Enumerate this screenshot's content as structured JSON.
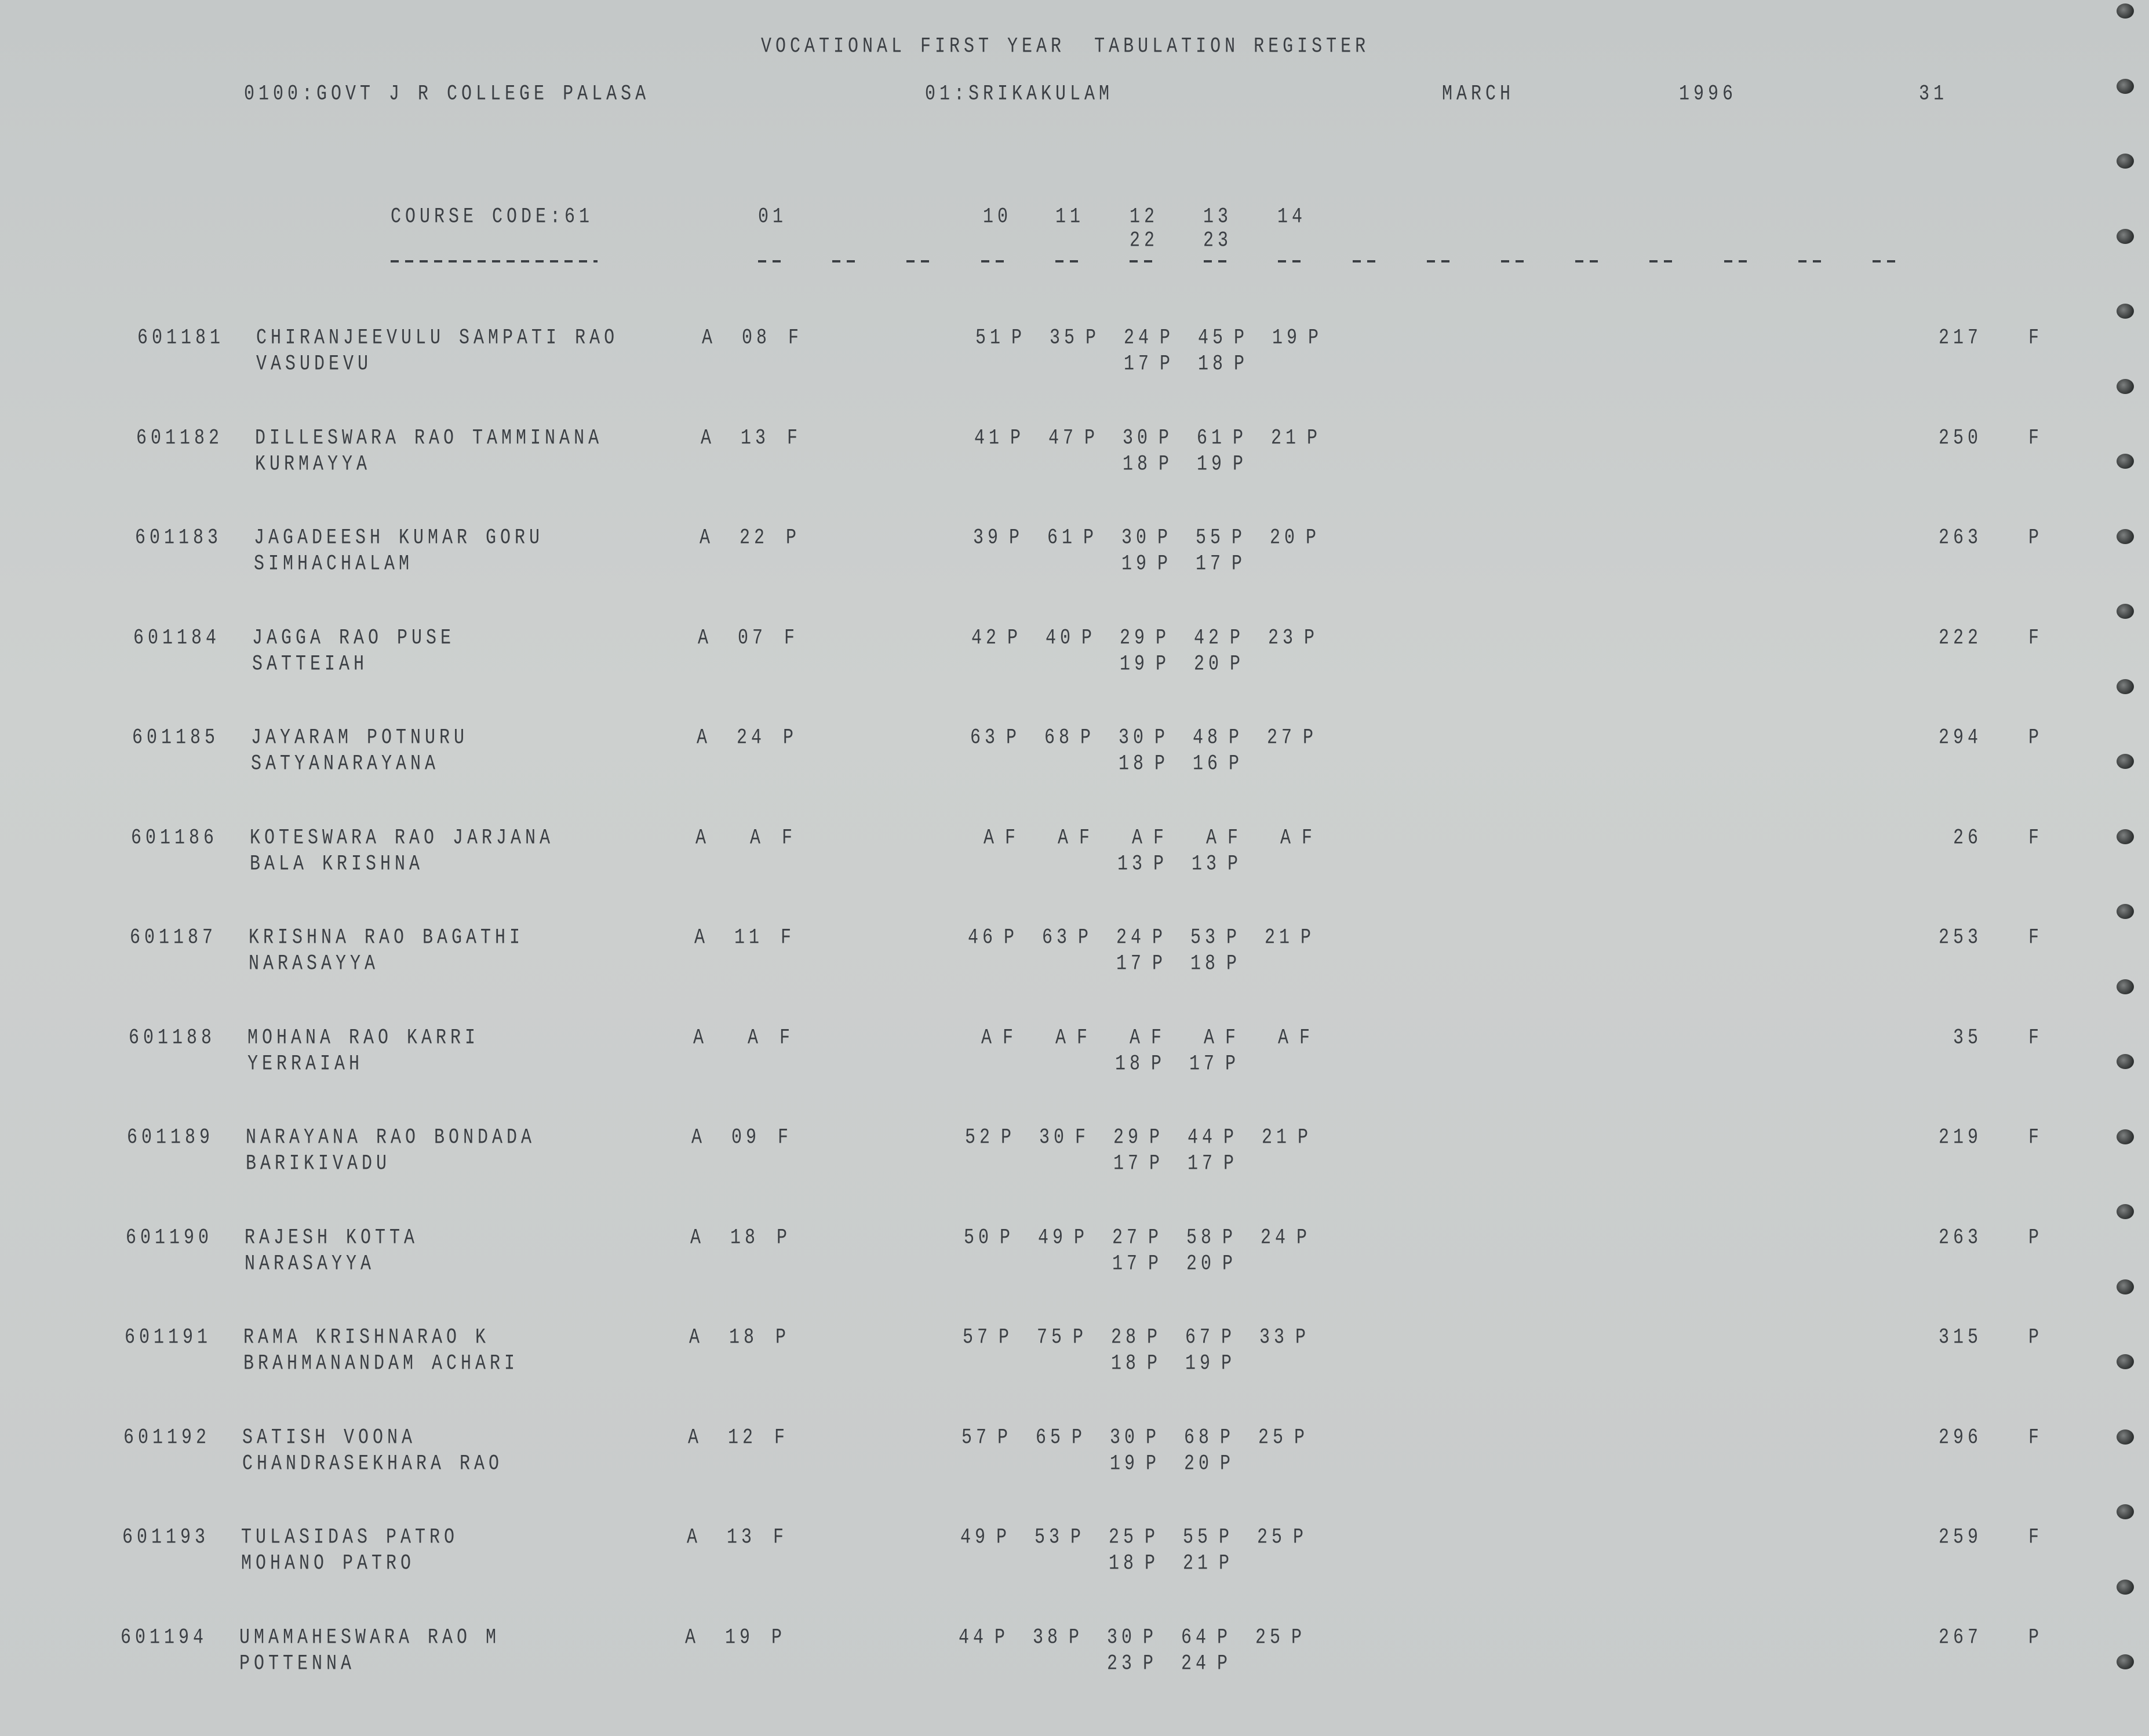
{
  "header": {
    "title": "VOCATIONAL FIRST YEAR  TABULATION REGISTER",
    "college": "0100:GOVT J R COLLEGE PALASA",
    "district": "01:SRIKAKULAM",
    "month": "MARCH",
    "year": "1996",
    "page": "31",
    "course_code": "COURSE CODE:61",
    "subject_codes": [
      "01",
      "10",
      "11",
      "12",
      "13",
      "14"
    ],
    "subject_codes_second": [
      "22",
      "23"
    ]
  },
  "rows": [
    {
      "id": "601181",
      "name1": "CHIRANJEEVULU SAMPATI RAO",
      "name2": "VASUDEVU",
      "s01": [
        "A",
        "08",
        "F"
      ],
      "marks": [
        [
          "51",
          "P"
        ],
        [
          "35",
          "P"
        ],
        [
          "24",
          "P"
        ],
        [
          "45",
          "P"
        ],
        [
          "19",
          "P"
        ]
      ],
      "marks2": [
        [
          "17",
          "P"
        ],
        [
          "18",
          "P"
        ]
      ],
      "total": "217",
      "result": "F"
    },
    {
      "id": "601182",
      "name1": "DILLESWARA RAO TAMMINANA",
      "name2": "KURMAYYA",
      "s01": [
        "A",
        "13",
        "F"
      ],
      "marks": [
        [
          "41",
          "P"
        ],
        [
          "47",
          "P"
        ],
        [
          "30",
          "P"
        ],
        [
          "61",
          "P"
        ],
        [
          "21",
          "P"
        ]
      ],
      "marks2": [
        [
          "18",
          "P"
        ],
        [
          "19",
          "P"
        ]
      ],
      "total": "250",
      "result": "F"
    },
    {
      "id": "601183",
      "name1": "JAGADEESH KUMAR GORU",
      "name2": "SIMHACHALAM",
      "s01": [
        "A",
        "22",
        "P"
      ],
      "marks": [
        [
          "39",
          "P"
        ],
        [
          "61",
          "P"
        ],
        [
          "30",
          "P"
        ],
        [
          "55",
          "P"
        ],
        [
          "20",
          "P"
        ]
      ],
      "marks2": [
        [
          "19",
          "P"
        ],
        [
          "17",
          "P"
        ]
      ],
      "total": "263",
      "result": "P"
    },
    {
      "id": "601184",
      "name1": "JAGGA RAO PUSE",
      "name2": "SATTEIAH",
      "s01": [
        "A",
        "07",
        "F"
      ],
      "marks": [
        [
          "42",
          "P"
        ],
        [
          "40",
          "P"
        ],
        [
          "29",
          "P"
        ],
        [
          "42",
          "P"
        ],
        [
          "23",
          "P"
        ]
      ],
      "marks2": [
        [
          "19",
          "P"
        ],
        [
          "20",
          "P"
        ]
      ],
      "total": "222",
      "result": "F"
    },
    {
      "id": "601185",
      "name1": "JAYARAM POTNURU",
      "name2": "SATYANARAYANA",
      "s01": [
        "A",
        "24",
        "P"
      ],
      "marks": [
        [
          "63",
          "P"
        ],
        [
          "68",
          "P"
        ],
        [
          "30",
          "P"
        ],
        [
          "48",
          "P"
        ],
        [
          "27",
          "P"
        ]
      ],
      "marks2": [
        [
          "18",
          "P"
        ],
        [
          "16",
          "P"
        ]
      ],
      "total": "294",
      "result": "P"
    },
    {
      "id": "601186",
      "name1": "KOTESWARA RAO JARJANA",
      "name2": "BALA KRISHNA",
      "s01": [
        "A",
        "A",
        "F"
      ],
      "marks": [
        [
          "A",
          "F"
        ],
        [
          "A",
          "F"
        ],
        [
          "A",
          "F"
        ],
        [
          "A",
          "F"
        ],
        [
          "A",
          "F"
        ]
      ],
      "marks2": [
        [
          "13",
          "P"
        ],
        [
          "13",
          "P"
        ]
      ],
      "total": "26",
      "result": "F"
    },
    {
      "id": "601187",
      "name1": "KRISHNA RAO BAGATHI",
      "name2": "NARASAYYA",
      "s01": [
        "A",
        "11",
        "F"
      ],
      "marks": [
        [
          "46",
          "P"
        ],
        [
          "63",
          "P"
        ],
        [
          "24",
          "P"
        ],
        [
          "53",
          "P"
        ],
        [
          "21",
          "P"
        ]
      ],
      "marks2": [
        [
          "17",
          "P"
        ],
        [
          "18",
          "P"
        ]
      ],
      "total": "253",
      "result": "F"
    },
    {
      "id": "601188",
      "name1": "MOHANA RAO KARRI",
      "name2": "YERRAIAH",
      "s01": [
        "A",
        "A",
        "F"
      ],
      "marks": [
        [
          "A",
          "F"
        ],
        [
          "A",
          "F"
        ],
        [
          "A",
          "F"
        ],
        [
          "A",
          "F"
        ],
        [
          "A",
          "F"
        ]
      ],
      "marks2": [
        [
          "18",
          "P"
        ],
        [
          "17",
          "P"
        ]
      ],
      "total": "35",
      "result": "F"
    },
    {
      "id": "601189",
      "name1": "NARAYANA RAO BONDADA",
      "name2": "BARIKIVADU",
      "s01": [
        "A",
        "09",
        "F"
      ],
      "marks": [
        [
          "52",
          "P"
        ],
        [
          "30",
          "F"
        ],
        [
          "29",
          "P"
        ],
        [
          "44",
          "P"
        ],
        [
          "21",
          "P"
        ]
      ],
      "marks2": [
        [
          "17",
          "P"
        ],
        [
          "17",
          "P"
        ]
      ],
      "total": "219",
      "result": "F"
    },
    {
      "id": "601190",
      "name1": "RAJESH KOTTA",
      "name2": "NARASAYYA",
      "s01": [
        "A",
        "18",
        "P"
      ],
      "marks": [
        [
          "50",
          "P"
        ],
        [
          "49",
          "P"
        ],
        [
          "27",
          "P"
        ],
        [
          "58",
          "P"
        ],
        [
          "24",
          "P"
        ]
      ],
      "marks2": [
        [
          "17",
          "P"
        ],
        [
          "20",
          "P"
        ]
      ],
      "total": "263",
      "result": "P"
    },
    {
      "id": "601191",
      "name1": "RAMA KRISHNARAO K",
      "name2": "BRAHMANANDAM ACHARI",
      "s01": [
        "A",
        "18",
        "P"
      ],
      "marks": [
        [
          "57",
          "P"
        ],
        [
          "75",
          "P"
        ],
        [
          "28",
          "P"
        ],
        [
          "67",
          "P"
        ],
        [
          "33",
          "P"
        ]
      ],
      "marks2": [
        [
          "18",
          "P"
        ],
        [
          "19",
          "P"
        ]
      ],
      "total": "315",
      "result": "P"
    },
    {
      "id": "601192",
      "name1": "SATISH VOONA",
      "name2": "CHANDRASEKHARA RAO",
      "s01": [
        "A",
        "12",
        "F"
      ],
      "marks": [
        [
          "57",
          "P"
        ],
        [
          "65",
          "P"
        ],
        [
          "30",
          "P"
        ],
        [
          "68",
          "P"
        ],
        [
          "25",
          "P"
        ]
      ],
      "marks2": [
        [
          "19",
          "P"
        ],
        [
          "20",
          "P"
        ]
      ],
      "total": "296",
      "result": "F"
    },
    {
      "id": "601193",
      "name1": "TULASIDAS PATRO",
      "name2": "MOHANO PATRO",
      "s01": [
        "A",
        "13",
        "F"
      ],
      "marks": [
        [
          "49",
          "P"
        ],
        [
          "53",
          "P"
        ],
        [
          "25",
          "P"
        ],
        [
          "55",
          "P"
        ],
        [
          "25",
          "P"
        ]
      ],
      "marks2": [
        [
          "18",
          "P"
        ],
        [
          "21",
          "P"
        ]
      ],
      "total": "259",
      "result": "F"
    },
    {
      "id": "601194",
      "name1": "UMAMAHESWARA RAO M",
      "name2": "POTTENNA",
      "s01": [
        "A",
        "19",
        "P"
      ],
      "marks": [
        [
          "44",
          "P"
        ],
        [
          "38",
          "P"
        ],
        [
          "30",
          "P"
        ],
        [
          "64",
          "P"
        ],
        [
          "25",
          "P"
        ]
      ],
      "marks2": [
        [
          "23",
          "P"
        ],
        [
          "24",
          "P"
        ]
      ],
      "total": "267",
      "result": "P"
    }
  ]
}
